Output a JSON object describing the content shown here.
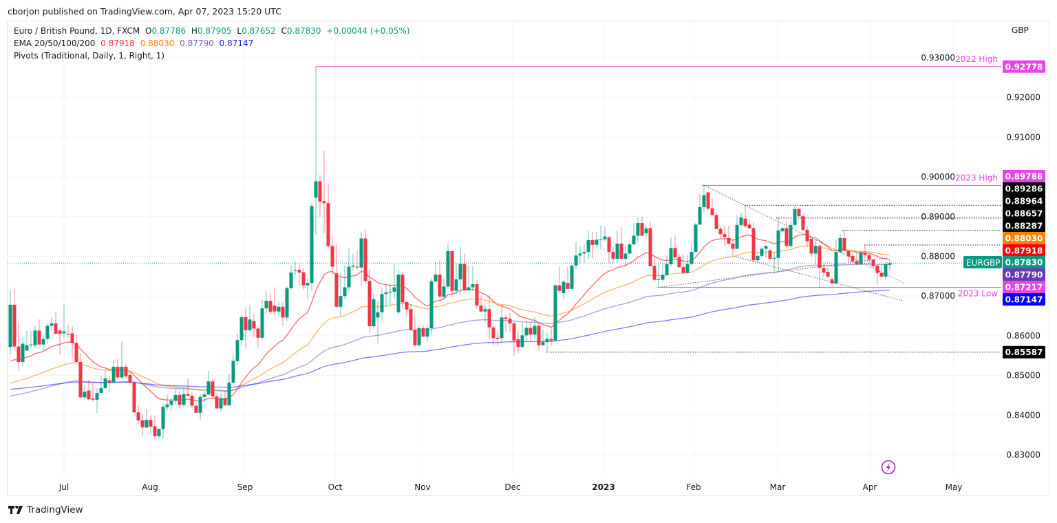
{
  "header": {
    "published": "cborjon published on TradingView.com, Apr 07, 2023 15:20 UTC"
  },
  "legend": {
    "symbol": "Euro / British Pound, 1D, FXCM",
    "o_label": "O",
    "o": "0.87786",
    "h_label": "H",
    "h": "0.87905",
    "l_label": "L",
    "l": "0.87652",
    "c_label": "C",
    "c": "0.87830",
    "change": "+0.00044 (+0.05%)",
    "ema_label": "EMA 20/50/100/200",
    "ema20": "0.87918",
    "ema50": "0.88030",
    "ema100": "0.87790",
    "ema200": "0.87147",
    "pivots": "Pivots (Traditional, Daily, 1, Right, 1)"
  },
  "brand": {
    "name": "TradingView"
  },
  "colors": {
    "up": "#089981",
    "down": "#f23645",
    "ema20": "#ff0000",
    "ema50": "#ff8000",
    "ema100": "#7e57c2",
    "ema200": "#2424ff",
    "level": "#e845e8",
    "pivot_tag": "#000000",
    "price": "#089981"
  },
  "chart_data": {
    "type": "candlestick",
    "symbol": "EURGBP",
    "currency": "GBP",
    "interval": "1D",
    "ylim": [
      0.825,
      0.9355
    ],
    "y_ticks": [
      "0.83000",
      "0.84000",
      "0.85000",
      "0.86000",
      "0.87000",
      "0.88000",
      "0.89000",
      "0.90000",
      "0.91000",
      "0.92000",
      "0.93000"
    ],
    "x_ticks": [
      "Jul",
      "Aug",
      "Sep",
      "Oct",
      "Nov",
      "Dec",
      "2023",
      "Feb",
      "Mar",
      "Apr",
      "May"
    ],
    "grid": true,
    "last_price": {
      "label": "EURGBP",
      "value": "0.87830"
    },
    "ema": {
      "periods": [
        20,
        50,
        100,
        200
      ],
      "values": [
        "0.87918",
        "0.88030",
        "0.87790",
        "0.87147"
      ],
      "left_edge_values": [
        0.8521,
        0.8472,
        0.8443,
        0.8463
      ]
    },
    "levels": [
      {
        "label": "2022 High",
        "value": "0.92778"
      },
      {
        "label": "2023 High",
        "value": "0.89788"
      },
      {
        "label": "2023 Low",
        "value": "0.87217"
      }
    ],
    "pivot_levels": [
      "0.89286",
      "0.88964",
      "0.88657",
      "0.88287",
      "0.85587"
    ],
    "candles_ohlc": [
      [
        0.8572,
        0.8716,
        0.8553,
        0.8678
      ],
      [
        0.8678,
        0.8722,
        0.8567,
        0.8573
      ],
      [
        0.8573,
        0.8634,
        0.8512,
        0.8534
      ],
      [
        0.8534,
        0.8596,
        0.8524,
        0.858
      ],
      [
        0.8563,
        0.8612,
        0.8562,
        0.8576
      ],
      [
        0.8577,
        0.8612,
        0.8569,
        0.8578
      ],
      [
        0.8576,
        0.8625,
        0.8569,
        0.8613
      ],
      [
        0.8613,
        0.8641,
        0.8577,
        0.8578
      ],
      [
        0.8578,
        0.86,
        0.8563,
        0.8592
      ],
      [
        0.8592,
        0.8629,
        0.8579,
        0.8625
      ],
      [
        0.8625,
        0.8647,
        0.8611,
        0.8631
      ],
      [
        0.8631,
        0.8661,
        0.8604,
        0.8605
      ],
      [
        0.8613,
        0.862,
        0.8553,
        0.8605
      ],
      [
        0.8606,
        0.8679,
        0.8594,
        0.8611
      ],
      [
        0.8605,
        0.8627,
        0.8595,
        0.8603
      ],
      [
        0.8606,
        0.8624,
        0.8544,
        0.8582
      ],
      [
        0.8582,
        0.8602,
        0.8533,
        0.8534
      ],
      [
        0.8534,
        0.8556,
        0.8443,
        0.8445
      ],
      [
        0.8445,
        0.8475,
        0.844,
        0.8459
      ],
      [
        0.8462,
        0.8489,
        0.8437,
        0.844
      ],
      [
        0.8442,
        0.8482,
        0.8433,
        0.8439
      ],
      [
        0.8439,
        0.8468,
        0.8405,
        0.8456
      ],
      [
        0.8456,
        0.8499,
        0.8455,
        0.8468
      ],
      [
        0.8468,
        0.8513,
        0.8464,
        0.8493
      ],
      [
        0.8488,
        0.8498,
        0.8459,
        0.8482
      ],
      [
        0.8482,
        0.854,
        0.8481,
        0.8522
      ],
      [
        0.8522,
        0.8541,
        0.8492,
        0.8495
      ],
      [
        0.8495,
        0.8585,
        0.8492,
        0.8522
      ],
      [
        0.8522,
        0.8528,
        0.8492,
        0.8498
      ],
      [
        0.8501,
        0.8509,
        0.8476,
        0.8482
      ],
      [
        0.8482,
        0.8487,
        0.8406,
        0.8407
      ],
      [
        0.8407,
        0.8424,
        0.8377,
        0.8387
      ],
      [
        0.8387,
        0.8403,
        0.8346,
        0.8369
      ],
      [
        0.8369,
        0.8416,
        0.8366,
        0.8388
      ],
      [
        0.8388,
        0.84,
        0.8352,
        0.8371
      ],
      [
        0.8372,
        0.8399,
        0.8339,
        0.8347
      ],
      [
        0.8347,
        0.8366,
        0.8342,
        0.8365
      ],
      [
        0.8365,
        0.8429,
        0.8342,
        0.8421
      ],
      [
        0.842,
        0.8453,
        0.8411,
        0.8427
      ],
      [
        0.8426,
        0.8443,
        0.8411,
        0.8436
      ],
      [
        0.8436,
        0.8466,
        0.8426,
        0.8451
      ],
      [
        0.8451,
        0.8461,
        0.8418,
        0.8426
      ],
      [
        0.8426,
        0.8469,
        0.842,
        0.8453
      ],
      [
        0.8453,
        0.8492,
        0.8446,
        0.8449
      ],
      [
        0.8449,
        0.8458,
        0.8417,
        0.8424
      ],
      [
        0.8424,
        0.8429,
        0.8405,
        0.8406
      ],
      [
        0.8406,
        0.8452,
        0.8387,
        0.8446
      ],
      [
        0.8446,
        0.8461,
        0.8432,
        0.8452
      ],
      [
        0.8452,
        0.8512,
        0.8449,
        0.8485
      ],
      [
        0.8485,
        0.8492,
        0.8446,
        0.8447
      ],
      [
        0.8447,
        0.8456,
        0.8416,
        0.8417
      ],
      [
        0.8417,
        0.8456,
        0.8408,
        0.8443
      ],
      [
        0.8443,
        0.8461,
        0.8423,
        0.8425
      ],
      [
        0.8425,
        0.8504,
        0.8423,
        0.8482
      ],
      [
        0.8482,
        0.855,
        0.8475,
        0.8537
      ],
      [
        0.8536,
        0.8605,
        0.8527,
        0.8589
      ],
      [
        0.8589,
        0.8654,
        0.8573,
        0.8647
      ],
      [
        0.8647,
        0.867,
        0.8569,
        0.8614
      ],
      [
        0.8614,
        0.8677,
        0.8611,
        0.8641
      ],
      [
        0.8637,
        0.8655,
        0.8596,
        0.8618
      ],
      [
        0.8618,
        0.8622,
        0.8569,
        0.8595
      ],
      [
        0.8595,
        0.869,
        0.8591,
        0.8669
      ],
      [
        0.8669,
        0.8712,
        0.8654,
        0.8688
      ],
      [
        0.8688,
        0.8707,
        0.8655,
        0.866
      ],
      [
        0.8676,
        0.8722,
        0.8651,
        0.8661
      ],
      [
        0.8661,
        0.8686,
        0.8651,
        0.8673
      ],
      [
        0.8673,
        0.8684,
        0.8626,
        0.8646
      ],
      [
        0.8646,
        0.8724,
        0.8637,
        0.872
      ],
      [
        0.872,
        0.8778,
        0.8717,
        0.8759
      ],
      [
        0.8764,
        0.8788,
        0.8752,
        0.8766
      ],
      [
        0.8766,
        0.8784,
        0.8726,
        0.8759
      ],
      [
        0.876,
        0.8769,
        0.8715,
        0.8727
      ],
      [
        0.8727,
        0.8746,
        0.8692,
        0.8733
      ],
      [
        0.8733,
        0.8935,
        0.8713,
        0.8927
      ],
      [
        0.8948,
        0.9278,
        0.8853,
        0.8989
      ],
      [
        0.8989,
        0.9005,
        0.8898,
        0.8938
      ],
      [
        0.8939,
        0.9067,
        0.8858,
        0.8934
      ],
      [
        0.8934,
        0.8981,
        0.8819,
        0.8826
      ],
      [
        0.8826,
        0.885,
        0.8754,
        0.8774
      ],
      [
        0.8757,
        0.883,
        0.8672,
        0.8673
      ],
      [
        0.8673,
        0.8758,
        0.865,
        0.87
      ],
      [
        0.87,
        0.8778,
        0.8692,
        0.8722
      ],
      [
        0.8722,
        0.8819,
        0.8713,
        0.8774
      ],
      [
        0.8774,
        0.8807,
        0.8765,
        0.8777
      ],
      [
        0.8774,
        0.8815,
        0.8764,
        0.8772
      ],
      [
        0.8772,
        0.8862,
        0.8726,
        0.8845
      ],
      [
        0.8845,
        0.8868,
        0.8731,
        0.8738
      ],
      [
        0.8738,
        0.8767,
        0.8609,
        0.8624
      ],
      [
        0.8624,
        0.8706,
        0.862,
        0.8692
      ],
      [
        0.8646,
        0.8688,
        0.858,
        0.8659
      ],
      [
        0.8659,
        0.8721,
        0.8637,
        0.8705
      ],
      [
        0.8705,
        0.8729,
        0.8672,
        0.8709
      ],
      [
        0.8709,
        0.8729,
        0.8676,
        0.8711
      ],
      [
        0.8711,
        0.8782,
        0.8692,
        0.8722
      ],
      [
        0.8659,
        0.8765,
        0.8654,
        0.8754
      ],
      [
        0.8754,
        0.8759,
        0.8667,
        0.8684
      ],
      [
        0.8685,
        0.8688,
        0.8647,
        0.8666
      ],
      [
        0.8667,
        0.8682,
        0.8611,
        0.8615
      ],
      [
        0.8615,
        0.8651,
        0.8572,
        0.8576
      ],
      [
        0.8576,
        0.8626,
        0.8573,
        0.8619
      ],
      [
        0.8619,
        0.8626,
        0.8597,
        0.8598
      ],
      [
        0.8598,
        0.8626,
        0.8585,
        0.8619
      ],
      [
        0.8619,
        0.8745,
        0.8603,
        0.8737
      ],
      [
        0.8737,
        0.8784,
        0.8735,
        0.8754
      ],
      [
        0.8754,
        0.879,
        0.8696,
        0.8699
      ],
      [
        0.8698,
        0.8744,
        0.8692,
        0.8724
      ],
      [
        0.8724,
        0.883,
        0.8718,
        0.8813
      ],
      [
        0.8813,
        0.8816,
        0.8702,
        0.8713
      ],
      [
        0.8713,
        0.8783,
        0.8704,
        0.8742
      ],
      [
        0.8742,
        0.8825,
        0.8703,
        0.8781
      ],
      [
        0.8781,
        0.8807,
        0.8715,
        0.8715
      ],
      [
        0.8715,
        0.8777,
        0.8713,
        0.8722
      ],
      [
        0.8722,
        0.8775,
        0.8713,
        0.873
      ],
      [
        0.873,
        0.874,
        0.8669,
        0.8676
      ],
      [
        0.8676,
        0.8699,
        0.8659,
        0.8661
      ],
      [
        0.8661,
        0.8677,
        0.8634,
        0.8667
      ],
      [
        0.8667,
        0.8702,
        0.8591,
        0.8621
      ],
      [
        0.8621,
        0.8625,
        0.8576,
        0.8594
      ],
      [
        0.8595,
        0.8611,
        0.8573,
        0.8592
      ],
      [
        0.8594,
        0.8677,
        0.8585,
        0.8646
      ],
      [
        0.8646,
        0.8654,
        0.8608,
        0.8642
      ],
      [
        0.8643,
        0.8657,
        0.8608,
        0.8631
      ],
      [
        0.8631,
        0.8637,
        0.8549,
        0.8588
      ],
      [
        0.8591,
        0.8611,
        0.8556,
        0.8572
      ],
      [
        0.8572,
        0.8634,
        0.8569,
        0.8601
      ],
      [
        0.8601,
        0.8634,
        0.8585,
        0.862
      ],
      [
        0.862,
        0.8634,
        0.8585,
        0.8603
      ],
      [
        0.8603,
        0.8648,
        0.8594,
        0.8625
      ],
      [
        0.8625,
        0.8634,
        0.8563,
        0.8576
      ],
      [
        0.8576,
        0.8616,
        0.8576,
        0.8584
      ],
      [
        0.8584,
        0.8608,
        0.8559,
        0.8592
      ],
      [
        0.8592,
        0.8618,
        0.8576,
        0.8588
      ],
      [
        0.8588,
        0.873,
        0.8586,
        0.8727
      ],
      [
        0.8727,
        0.8774,
        0.8705,
        0.8713
      ],
      [
        0.8707,
        0.874,
        0.8692,
        0.8736
      ],
      [
        0.8733,
        0.8774,
        0.8717,
        0.8718
      ],
      [
        0.8718,
        0.8779,
        0.8716,
        0.8777
      ],
      [
        0.8777,
        0.8836,
        0.8767,
        0.8802
      ],
      [
        0.8802,
        0.8825,
        0.8783,
        0.8807
      ],
      [
        0.8807,
        0.883,
        0.8784,
        0.8811
      ],
      [
        0.8811,
        0.8865,
        0.8793,
        0.8841
      ],
      [
        0.8841,
        0.8862,
        0.8794,
        0.8829
      ],
      [
        0.8829,
        0.8861,
        0.882,
        0.8842
      ],
      [
        0.8842,
        0.8878,
        0.8817,
        0.8843
      ],
      [
        0.8843,
        0.8875,
        0.8839,
        0.885
      ],
      [
        0.8848,
        0.885,
        0.8784,
        0.8811
      ],
      [
        0.8811,
        0.8825,
        0.8784,
        0.8794
      ],
      [
        0.8794,
        0.8865,
        0.8784,
        0.8832
      ],
      [
        0.8832,
        0.8873,
        0.879,
        0.8794
      ],
      [
        0.8794,
        0.8826,
        0.8771,
        0.8807
      ],
      [
        0.8807,
        0.8836,
        0.8804,
        0.883
      ],
      [
        0.883,
        0.8884,
        0.883,
        0.8852
      ],
      [
        0.8852,
        0.8898,
        0.8833,
        0.8884
      ],
      [
        0.8884,
        0.89,
        0.8851,
        0.8852
      ],
      [
        0.8858,
        0.8877,
        0.8846,
        0.887
      ],
      [
        0.8871,
        0.8888,
        0.8775,
        0.8775
      ],
      [
        0.8776,
        0.8797,
        0.8737,
        0.8741
      ],
      [
        0.8741,
        0.8782,
        0.8722,
        0.8742
      ],
      [
        0.8741,
        0.8784,
        0.8737,
        0.8753
      ],
      [
        0.8753,
        0.8802,
        0.8752,
        0.878
      ],
      [
        0.878,
        0.8849,
        0.8774,
        0.8821
      ],
      [
        0.8821,
        0.8853,
        0.8796,
        0.8797
      ],
      [
        0.8798,
        0.8805,
        0.8771,
        0.8773
      ],
      [
        0.8773,
        0.8805,
        0.8757,
        0.8758
      ],
      [
        0.8758,
        0.8803,
        0.8757,
        0.8781
      ],
      [
        0.8781,
        0.883,
        0.8775,
        0.8811
      ],
      [
        0.8811,
        0.8884,
        0.881,
        0.888
      ],
      [
        0.888,
        0.8957,
        0.8879,
        0.8924
      ],
      [
        0.8924,
        0.8979,
        0.8911,
        0.8954
      ],
      [
        0.8961,
        0.8963,
        0.8915,
        0.892
      ],
      [
        0.8921,
        0.8946,
        0.8903,
        0.8904
      ],
      [
        0.8904,
        0.8911,
        0.8868,
        0.8869
      ],
      [
        0.8869,
        0.8877,
        0.8846,
        0.8856
      ],
      [
        0.8856,
        0.8877,
        0.8825,
        0.8848
      ],
      [
        0.8846,
        0.8877,
        0.883,
        0.8832
      ],
      [
        0.8832,
        0.8844,
        0.8799,
        0.8819
      ],
      [
        0.8819,
        0.8904,
        0.8819,
        0.8879
      ],
      [
        0.8879,
        0.8909,
        0.8873,
        0.8898
      ],
      [
        0.8895,
        0.8931,
        0.8872,
        0.8876
      ],
      [
        0.888,
        0.8892,
        0.8869,
        0.8871
      ],
      [
        0.8871,
        0.8888,
        0.8787,
        0.879
      ],
      [
        0.879,
        0.8807,
        0.8786,
        0.8801
      ],
      [
        0.8801,
        0.8826,
        0.8797,
        0.8819
      ],
      [
        0.8819,
        0.8828,
        0.8796,
        0.8826
      ],
      [
        0.8815,
        0.8819,
        0.8792,
        0.8794
      ],
      [
        0.8794,
        0.8813,
        0.8757,
        0.8796
      ],
      [
        0.8796,
        0.8898,
        0.8764,
        0.8865
      ],
      [
        0.8863,
        0.8873,
        0.8859,
        0.8871
      ],
      [
        0.8871,
        0.8888,
        0.8819,
        0.8826
      ],
      [
        0.8826,
        0.8888,
        0.8823,
        0.8879
      ],
      [
        0.8879,
        0.8927,
        0.8876,
        0.8919
      ],
      [
        0.8919,
        0.8923,
        0.89,
        0.8901
      ],
      [
        0.8901,
        0.8909,
        0.8865,
        0.8867
      ],
      [
        0.8867,
        0.8877,
        0.8823,
        0.8838
      ],
      [
        0.8844,
        0.8849,
        0.8799,
        0.8807
      ],
      [
        0.8807,
        0.8843,
        0.878,
        0.8826
      ],
      [
        0.8826,
        0.883,
        0.872,
        0.8771
      ],
      [
        0.8771,
        0.8781,
        0.8749,
        0.8759
      ],
      [
        0.8761,
        0.8772,
        0.8745,
        0.8749
      ],
      [
        0.8742,
        0.8748,
        0.8729,
        0.8732
      ],
      [
        0.8732,
        0.8842,
        0.8729,
        0.8811
      ],
      [
        0.8811,
        0.8856,
        0.8807,
        0.8846
      ],
      [
        0.8846,
        0.8866,
        0.8813,
        0.8814
      ],
      [
        0.8813,
        0.8815,
        0.8782,
        0.88
      ],
      [
        0.8801,
        0.8807,
        0.8786,
        0.8787
      ],
      [
        0.8788,
        0.8811,
        0.8778,
        0.878
      ],
      [
        0.878,
        0.8813,
        0.8778,
        0.8809
      ],
      [
        0.8809,
        0.8828,
        0.8787,
        0.8803
      ],
      [
        0.8803,
        0.8807,
        0.8781,
        0.8792
      ],
      [
        0.8792,
        0.8792,
        0.877,
        0.8775
      ],
      [
        0.8777,
        0.8778,
        0.8729,
        0.8758
      ],
      [
        0.8758,
        0.8778,
        0.8746,
        0.8749
      ],
      [
        0.8749,
        0.8784,
        0.8742,
        0.878
      ],
      [
        0.87786,
        0.87905,
        0.87652,
        0.8783
      ]
    ]
  }
}
